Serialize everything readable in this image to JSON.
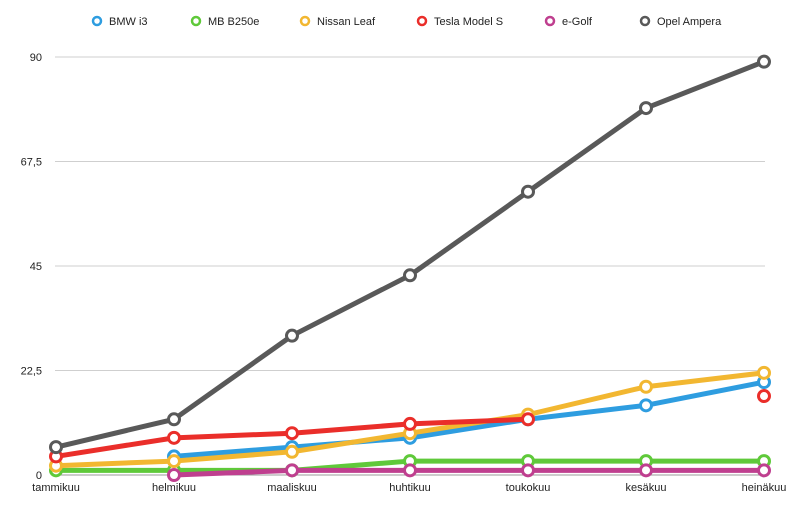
{
  "chart_data": {
    "type": "line",
    "categories": [
      "tammikuu",
      "helmikuu",
      "maaliskuu",
      "huhtikuu",
      "toukokuu",
      "kesäkuu",
      "heinäkuu"
    ],
    "ylim": [
      0,
      90
    ],
    "yticks": [
      0,
      22.5,
      45,
      67.5,
      90
    ],
    "ytick_labels": [
      "0",
      "22,5",
      "45",
      "67,5",
      "90"
    ],
    "grid": true,
    "legend_position": "top",
    "series": [
      {
        "name": "BMW i3",
        "color": "#2e9de0",
        "values": [
          null,
          4,
          6,
          8,
          12,
          15,
          20
        ]
      },
      {
        "name": "MB B250e",
        "color": "#5fc93a",
        "values": [
          1,
          1,
          1,
          3,
          3,
          3,
          3
        ]
      },
      {
        "name": "Nissan Leaf",
        "color": "#f2b731",
        "values": [
          2,
          3,
          5,
          9,
          13,
          19,
          22
        ]
      },
      {
        "name": "Tesla Model S",
        "color": "#ea2e2a",
        "values": [
          4,
          8,
          9,
          11,
          12,
          null,
          17
        ]
      },
      {
        "name": "e-Golf",
        "color": "#bf3f8f",
        "values": [
          null,
          0,
          1,
          1,
          1,
          1,
          1
        ]
      },
      {
        "name": "Opel Ampera",
        "color": "#595959",
        "values": [
          6,
          12,
          30,
          43,
          61,
          79,
          89
        ]
      }
    ]
  }
}
